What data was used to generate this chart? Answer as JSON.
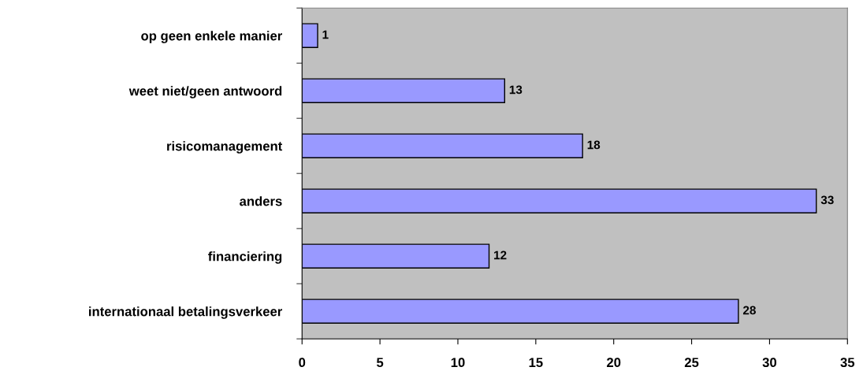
{
  "chart_data": {
    "type": "bar",
    "orientation": "horizontal",
    "categories": [
      "op geen enkele manier",
      "weet niet/geen antwoord",
      "risicomanagement",
      "anders",
      "financiering",
      "internationaal betalingsverkeer"
    ],
    "values": [
      1,
      13,
      18,
      33,
      12,
      28
    ],
    "color": "#9999ff",
    "xlim": [
      0,
      35
    ],
    "xticks": [
      0,
      5,
      10,
      15,
      20,
      25,
      30,
      35
    ],
    "data_labels": true,
    "grid": false,
    "legend": false
  }
}
